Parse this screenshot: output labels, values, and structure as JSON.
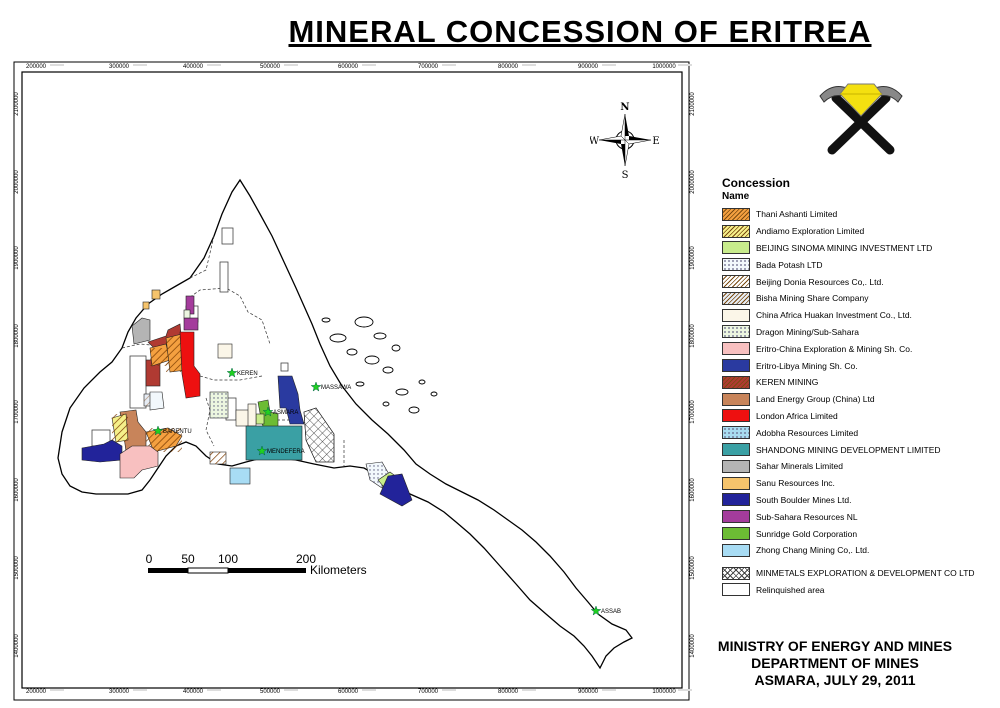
{
  "title": "MINERAL   CONCESSION OF  ERITREA",
  "axes": {
    "x_ticks": [
      "200000",
      "300000",
      "400000",
      "500000",
      "600000",
      "700000",
      "800000",
      "900000",
      "1000000"
    ],
    "y_ticks": [
      "2100000",
      "2000000",
      "1900000",
      "1800000",
      "1700000",
      "1600000",
      "1500000",
      "1400000"
    ]
  },
  "compass": {
    "n": "N",
    "s": "S",
    "e": "E",
    "w": "W"
  },
  "cities": [
    {
      "name": "KEREN"
    },
    {
      "name": "MASSAWA"
    },
    {
      "name": "ASMARA"
    },
    {
      "name": "BARENTU"
    },
    {
      "name": "MENDEFERA"
    },
    {
      "name": "ASSAB"
    }
  ],
  "scalebar": {
    "ticks": [
      "0",
      "50",
      "100",
      "200"
    ],
    "unit": "Kilometers"
  },
  "legend": {
    "heading": "Concession",
    "subheading": "Name",
    "items": [
      {
        "label": "Thani Ashanti Limited",
        "color": "#f4a040",
        "pattern": "hatch"
      },
      {
        "label": "Andiamo Exploration Limited",
        "color": "#f5f08a",
        "pattern": "hatch"
      },
      {
        "label": "BEIJING SINOMA MINING INVESTMENT LTD",
        "color": "#c8ec8c",
        "pattern": "none"
      },
      {
        "label": "Bada Potash LTD",
        "color": "#f2f8fc",
        "pattern": "dots"
      },
      {
        "label": "Beijing Donia Resources Co,. Ltd.",
        "color": "#ffffff",
        "pattern": "hatch"
      },
      {
        "label": "Bisha Mining Share Company",
        "color": "#e6ecf4",
        "pattern": "hatch"
      },
      {
        "label": "China Africa Huakan Investment Co., Ltd.",
        "color": "#fbf6e8",
        "pattern": "none"
      },
      {
        "label": "Dragon Mining/Sub-Sahara",
        "color": "#ecf6e0",
        "pattern": "dots"
      },
      {
        "label": "Eritro-China Exploration & Mining Sh. Co.",
        "color": "#f8c0c0",
        "pattern": "none"
      },
      {
        "label": "Eritro-Libya Mining Sh. Co.",
        "color": "#2a3aa0",
        "pattern": "none"
      },
      {
        "label": "KEREN MINING",
        "color": "#b03a32",
        "pattern": "hatch"
      },
      {
        "label": "Land Energy Group (China) Ltd",
        "color": "#c8845a",
        "pattern": "none"
      },
      {
        "label": "London Africa Limited",
        "color": "#ee1010",
        "pattern": "none"
      },
      {
        "label": "Adobha Resources Limited",
        "color": "#a8dcf0",
        "pattern": "dots"
      },
      {
        "label": "SHANDONG MINING DEVELOPMENT LIMITED",
        "color": "#3aa0a4",
        "pattern": "none"
      },
      {
        "label": "Sahar Minerals Limited",
        "color": "#b4b4b4",
        "pattern": "none"
      },
      {
        "label": "Sanu Resources Inc.",
        "color": "#f6c46c",
        "pattern": "none"
      },
      {
        "label": "South Boulder Mines Ltd.",
        "color": "#22239a",
        "pattern": "none"
      },
      {
        "label": "Sub-Sahara Resources NL",
        "color": "#a43c9c",
        "pattern": "none"
      },
      {
        "label": "Sunridge Gold Corporation",
        "color": "#6cbc34",
        "pattern": "none"
      },
      {
        "label": "Zhong Chang Mining Co,. Ltd.",
        "color": "#a8dcf4",
        "pattern": "none"
      }
    ],
    "extra": [
      {
        "label": "MINMETALS EXPLORATION & DEVELOPMENT CO LTD",
        "color": "#ffffff",
        "pattern": "cross"
      },
      {
        "label": "Relinquished area",
        "color": "#ffffff",
        "pattern": "none"
      }
    ]
  },
  "footer": {
    "line1": "MINISTRY OF ENERGY AND MINES",
    "line2": "DEPARTMENT OF MINES",
    "line3": "ASMARA, JULY 29, 2011"
  }
}
